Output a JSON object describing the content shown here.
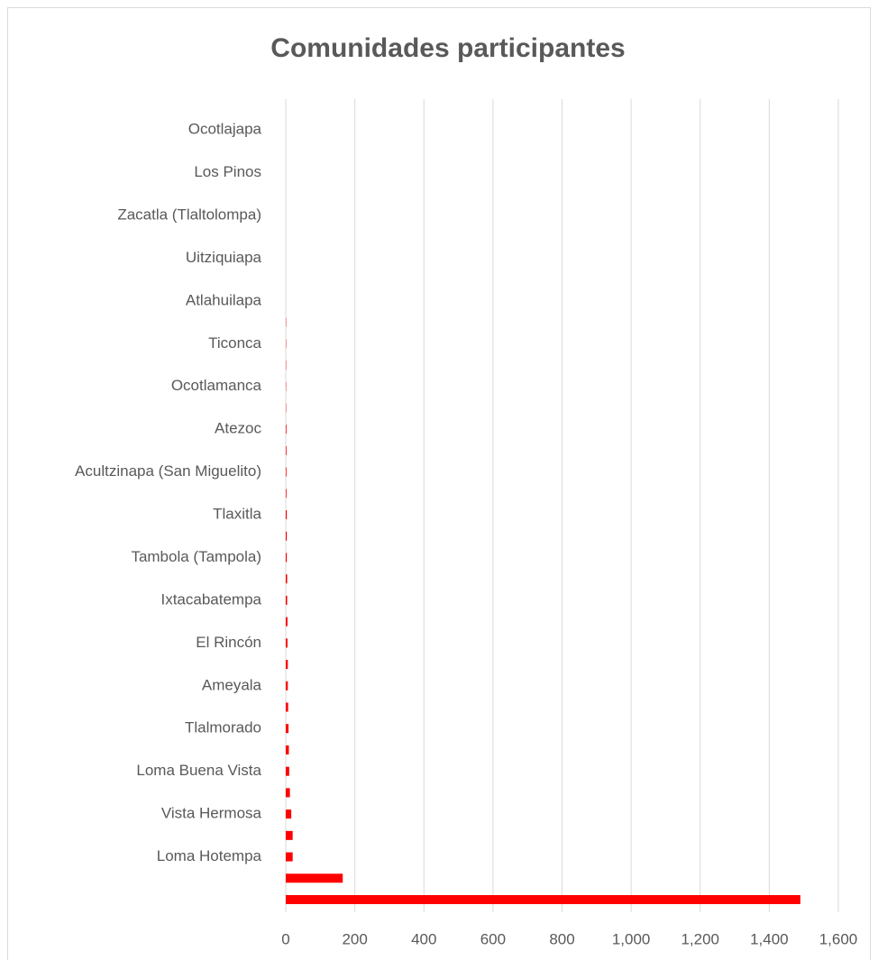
{
  "chart_data": {
    "type": "bar",
    "orientation": "horizontal",
    "title": "Comunidades participantes",
    "categories": [
      null,
      null,
      "Loma Hotempa",
      null,
      "Vista Hermosa",
      null,
      "Loma Buena Vista",
      null,
      "Tlalmorado",
      null,
      "Ameyala",
      null,
      "El Rincón",
      null,
      "Ixtacabatempa",
      null,
      "Tambola (Tampola)",
      null,
      "Tlaxitla",
      null,
      "Acultzinapa (San Miguelito)",
      null,
      "Atezoc",
      null,
      "Ocotlamanca",
      null,
      "Ticonca",
      null,
      "Atlahuilapa",
      null,
      "Uitziquiapa",
      null,
      "Zacatla (Tlaltolompa)",
      null,
      "Los Pinos",
      null,
      "Ocotlajapa"
    ],
    "values": [
      1490,
      165,
      20,
      20,
      16,
      12,
      10,
      9,
      8,
      7,
      6,
      6,
      5,
      5,
      4,
      4,
      3,
      3,
      3,
      2,
      2,
      2,
      2,
      1,
      1,
      1,
      1,
      1,
      0,
      0,
      0,
      0,
      0,
      0,
      0,
      0,
      0
    ],
    "color": "#ff0000",
    "ylim": [
      0,
      1600
    ],
    "yticks": [
      0,
      200,
      400,
      600,
      800,
      {
        "value": 1000,
        "label": "1,000"
      },
      {
        "value": 1200,
        "label": "1,200"
      },
      {
        "value": 1400,
        "label": "1,400"
      },
      {
        "value": 1600,
        "label": "1,600"
      }
    ],
    "grid": true
  }
}
